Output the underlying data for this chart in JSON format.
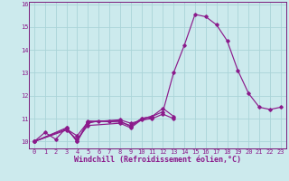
{
  "xlabel": "Windchill (Refroidissement éolien,°C)",
  "bg_color": "#cceaed",
  "grid_color": "#aad4d8",
  "line_color": "#8b1a8b",
  "spine_color": "#7a1a7a",
  "xlim": [
    -0.5,
    23.5
  ],
  "ylim": [
    9.7,
    16.1
  ],
  "xticks": [
    0,
    1,
    2,
    3,
    4,
    5,
    6,
    7,
    8,
    9,
    10,
    11,
    12,
    13,
    14,
    15,
    16,
    17,
    18,
    19,
    20,
    21,
    22,
    23
  ],
  "yticks": [
    10,
    11,
    12,
    13,
    14,
    15,
    16
  ],
  "series": [
    [
      10.0,
      10.4,
      10.1,
      10.6,
      10.0,
      10.8,
      10.9,
      10.9,
      10.9,
      10.65,
      11.0,
      11.1,
      11.3,
      13.0,
      14.2,
      15.55,
      15.45,
      15.1,
      14.4,
      13.1,
      12.1,
      11.5,
      11.4,
      11.5
    ],
    [
      10.0,
      null,
      null,
      10.55,
      10.25,
      10.85,
      null,
      null,
      10.95,
      10.8,
      null,
      11.05,
      null,
      null,
      null,
      null,
      null,
      null,
      null,
      null,
      null,
      null,
      null,
      null
    ],
    [
      10.0,
      null,
      null,
      10.6,
      10.0,
      10.9,
      null,
      null,
      10.85,
      10.7,
      11.0,
      11.1,
      11.45,
      11.1,
      null,
      null,
      null,
      null,
      null,
      null,
      null,
      null,
      null,
      null
    ],
    [
      10.0,
      null,
      null,
      10.5,
      10.1,
      10.7,
      null,
      null,
      10.8,
      10.6,
      10.95,
      11.0,
      11.2,
      11.0,
      null,
      null,
      null,
      null,
      null,
      null,
      null,
      null,
      null,
      null
    ]
  ],
  "tick_fontsize": 5.0,
  "xlabel_fontsize": 6.0
}
